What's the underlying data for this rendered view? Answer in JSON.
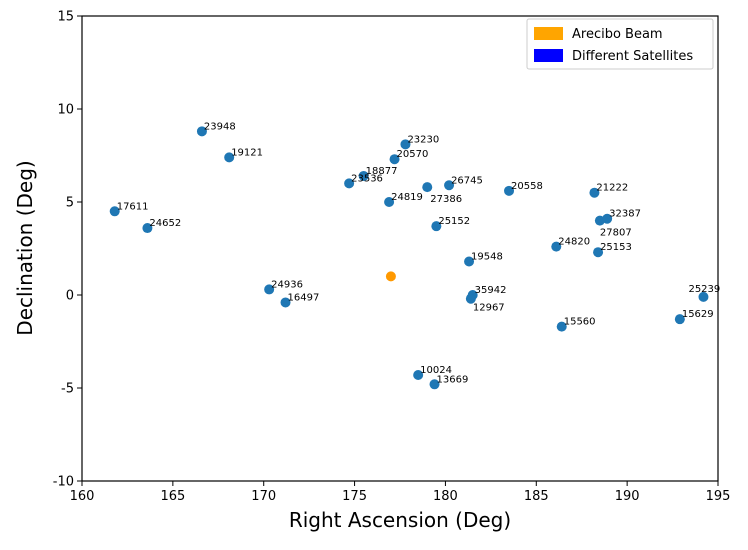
{
  "chart_data": {
    "type": "scatter",
    "title": "",
    "xlabel": "Right Ascension (Deg)",
    "ylabel": "Declination (Deg)",
    "xlim": [
      160,
      195
    ],
    "ylim": [
      -10,
      15
    ],
    "xticks": [
      160,
      165,
      170,
      175,
      180,
      185,
      190,
      195
    ],
    "yticks": [
      -10,
      -5,
      0,
      5,
      10,
      15
    ],
    "grid": false,
    "legend_position": "top-right",
    "legend": [
      {
        "label": "Arecibo Beam",
        "color": "#FFA500"
      },
      {
        "label": "Different Satellites",
        "color": "#0000FF"
      }
    ],
    "series": [
      {
        "name": "Arecibo Beam",
        "color": "#FF9900",
        "points": [
          {
            "x": 177.0,
            "y": 1.0
          }
        ]
      },
      {
        "name": "Different Satellites",
        "color": "#1F77B4",
        "points": [
          {
            "x": 161.8,
            "y": 4.5,
            "label": "17611"
          },
          {
            "x": 163.6,
            "y": 3.6,
            "label": "24652"
          },
          {
            "x": 166.6,
            "y": 8.8,
            "label": "23948"
          },
          {
            "x": 168.1,
            "y": 7.4,
            "label": "19121"
          },
          {
            "x": 170.3,
            "y": 0.3,
            "label": "24936"
          },
          {
            "x": 171.2,
            "y": -0.4,
            "label": "16497"
          },
          {
            "x": 174.7,
            "y": 6.0,
            "label": "23536"
          },
          {
            "x": 175.5,
            "y": 6.4,
            "label": "18877"
          },
          {
            "x": 176.9,
            "y": 5.0,
            "label": "24819"
          },
          {
            "x": 177.2,
            "y": 7.3,
            "label": "20570"
          },
          {
            "x": 177.8,
            "y": 8.1,
            "label": "23230"
          },
          {
            "x": 178.5,
            "y": -4.3,
            "label": "10024"
          },
          {
            "x": 179.0,
            "y": 5.8,
            "label": "27386"
          },
          {
            "x": 179.4,
            "y": -4.8,
            "label": "13669"
          },
          {
            "x": 179.5,
            "y": 3.7,
            "label": "25152"
          },
          {
            "x": 180.2,
            "y": 5.9,
            "label": "26745"
          },
          {
            "x": 181.3,
            "y": 1.8,
            "label": "19548"
          },
          {
            "x": 181.5,
            "y": 0.0,
            "label": "35942"
          },
          {
            "x": 181.4,
            "y": -0.2,
            "label": "12967"
          },
          {
            "x": 183.5,
            "y": 5.6,
            "label": "20558"
          },
          {
            "x": 186.1,
            "y": 2.6,
            "label": "24820"
          },
          {
            "x": 186.4,
            "y": -1.7,
            "label": "15560"
          },
          {
            "x": 188.2,
            "y": 5.5,
            "label": "21222"
          },
          {
            "x": 188.4,
            "y": 2.3,
            "label": "25153"
          },
          {
            "x": 188.5,
            "y": 4.0,
            "label": "27807"
          },
          {
            "x": 188.9,
            "y": 4.1,
            "label": "32387"
          },
          {
            "x": 192.9,
            "y": -1.3,
            "label": "15629"
          },
          {
            "x": 194.2,
            "y": -0.1,
            "label": "25239"
          }
        ]
      }
    ]
  }
}
